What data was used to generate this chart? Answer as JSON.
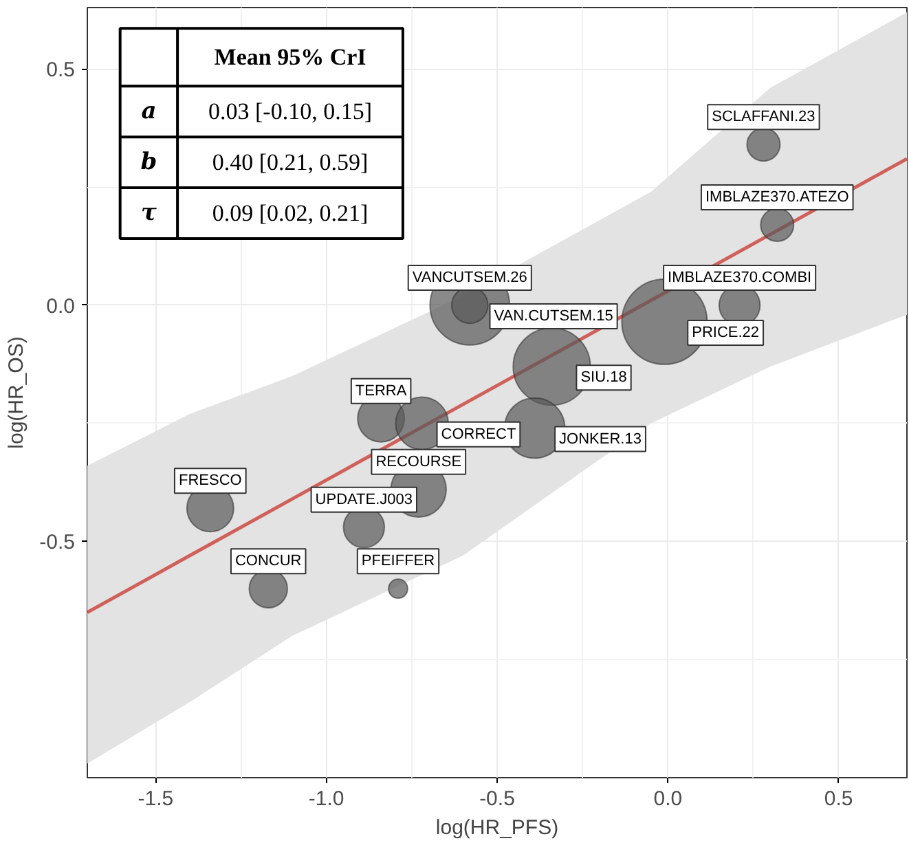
{
  "chart_data": {
    "type": "bubble",
    "xlabel": "log(HR_PFS)",
    "ylabel": "log(HR_OS)",
    "xlim": [
      -1.7,
      0.7
    ],
    "ylim": [
      -1.0,
      0.63
    ],
    "xticks": [
      -1.5,
      {
        "value": -1.0,
        "label": "-1.0"
      },
      -0.5,
      {
        "value": 0.0,
        "label": "0.0"
      },
      0.5
    ],
    "yticks": [
      {
        "value": -0.5,
        "label": "-0.5"
      },
      {
        "value": 0.0,
        "label": "0.0"
      },
      0.5
    ],
    "grid": true,
    "series": [
      {
        "color": "#595959",
        "x": [
          0.28,
          0.32,
          0.21,
          -0.01,
          -0.58,
          -0.58,
          -0.34,
          -0.39,
          -0.84,
          -0.72,
          -0.73,
          -1.34,
          -0.89,
          -1.17,
          -0.79
        ],
        "values": [
          0.34,
          0.17,
          0.0,
          -0.035,
          0.0,
          0.0,
          -0.13,
          -0.26,
          -0.24,
          -0.25,
          -0.39,
          -0.43,
          -0.47,
          -0.6,
          -0.6
        ],
        "sizes": [
          0.15,
          0.15,
          0.23,
          1,
          0.87,
          0.18,
          0.82,
          0.5,
          0.3,
          0.38,
          0.42,
          0.3,
          0.23,
          0.2,
          0.05
        ]
      },
      {
        "type": "line",
        "color": "#d0605a",
        "x": [
          -1.7,
          -1.4,
          -1.1,
          -0.6,
          -0.05,
          0.3,
          0.7
        ],
        "values": [
          -0.65,
          -0.53,
          -0.41,
          -0.21,
          0.01,
          0.15,
          0.31
        ],
        "lower": [
          -0.97,
          -0.84,
          -0.7,
          -0.53,
          -0.25,
          -0.13,
          -0.02
        ],
        "upper": [
          -0.34,
          -0.23,
          -0.15,
          0.02,
          0.24,
          0.46,
          0.62
        ]
      }
    ],
    "annotations": [
      "Mean 95% CrI",
      "a",
      "0.03 [-0.10, 0.15]",
      "b",
      "0.40 [0.21, 0.59]",
      "τ",
      "0.09 [0.02, 0.21]",
      {
        "text": "SCLAFFANI.23",
        "x": 0.28,
        "y": 0.34
      },
      {
        "text": "IMBLAZE370.ATEZO",
        "x": 0.32,
        "y": 0.17
      },
      {
        "text": "IMBLAZE370.COMBI",
        "x": 0.21,
        "y": 0.0
      },
      {
        "text": "PRICE.22",
        "x": -0.01,
        "y": -0.035
      },
      {
        "text": "VANCUTSEM.26",
        "x": -0.58,
        "y": 0.0
      },
      {
        "text": "VAN.CUTSEM.15",
        "x": -0.58,
        "y": 0.0
      },
      {
        "text": "SIU.18",
        "x": -0.34,
        "y": -0.13
      },
      {
        "text": "JONKER.13",
        "x": -0.39,
        "y": -0.26
      },
      {
        "text": "TERRA",
        "x": -0.84,
        "y": -0.24
      },
      {
        "text": "CORRECT",
        "x": -0.72,
        "y": -0.25
      },
      {
        "text": "RECOURSE",
        "x": -0.73,
        "y": -0.39
      },
      {
        "text": "FRESCO",
        "x": -1.34,
        "y": -0.43
      },
      {
        "text": "UPDATE.J003",
        "x": -0.89,
        "y": -0.47
      },
      {
        "text": "CONCUR",
        "x": -1.17,
        "y": -0.6
      },
      {
        "text": "PFEIFFER",
        "x": -0.79,
        "y": -0.6
      }
    ]
  }
}
